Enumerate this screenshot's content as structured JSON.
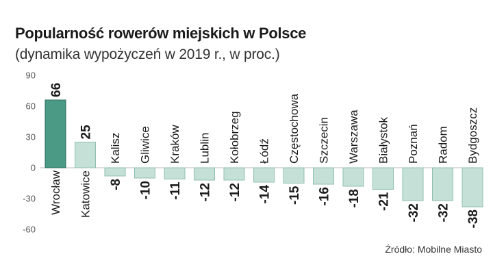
{
  "chart_data": {
    "type": "bar",
    "title": "Popularność rowerów miejskich w Polsce",
    "subtitle": "(dynamika wypożyczeń w 2019 r., w proc.)",
    "categories": [
      "Wrocław",
      "Katowice",
      "Kalisz",
      "Gliwice",
      "Kraków",
      "Lublin",
      "Kołobrzeg",
      "Łódź",
      "Częstochowa",
      "Szczecin",
      "Warszawa",
      "Białystok",
      "Poznań",
      "Radom",
      "Bydgoszcz"
    ],
    "values": [
      66,
      25,
      -8,
      -10,
      -11,
      -12,
      -12,
      -14,
      -15,
      -16,
      -18,
      -21,
      -32,
      -32,
      -38
    ],
    "value_labels": [
      "66",
      "25",
      "-8",
      "-10",
      "-11",
      "-12",
      "-12",
      "-14",
      "-15",
      "-16",
      "-18",
      "-21",
      "-32",
      "-32",
      "-38"
    ],
    "yticks": [
      "90",
      "60",
      "30",
      "0",
      "-30",
      "-60"
    ],
    "ylim": [
      -60,
      90
    ],
    "grid": false,
    "colors": {
      "highlight": "#4a9a86",
      "highlight_stroke": "#2e6e5e",
      "bar": "#c5e0d6",
      "bar_stroke": "#8fbfae"
    },
    "source": "Źródło: Mobilne Miasto"
  }
}
